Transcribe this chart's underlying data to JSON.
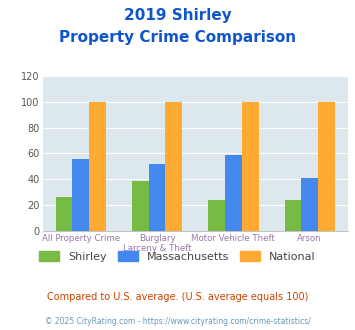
{
  "title_line1": "2019 Shirley",
  "title_line2": "Property Crime Comparison",
  "category_labels_line1": [
    "All Property Crime",
    "Burglary",
    "Motor Vehicle Theft",
    "Arson"
  ],
  "category_labels_line2": [
    "",
    "Larceny & Theft",
    "",
    ""
  ],
  "groups": [
    "Shirley",
    "Massachusetts",
    "National"
  ],
  "values": {
    "Shirley": [
      26,
      39,
      24,
      24
    ],
    "Massachusetts": [
      56,
      52,
      59,
      41
    ],
    "National": [
      100,
      100,
      100,
      100
    ]
  },
  "bar_colors": {
    "Shirley": "#77bb44",
    "Massachusetts": "#4488ee",
    "National": "#ffaa33"
  },
  "ylim": [
    0,
    120
  ],
  "yticks": [
    0,
    20,
    40,
    60,
    80,
    100,
    120
  ],
  "title_color": "#1155cc",
  "axis_label_color": "#9977aa",
  "legend_label_color": "#444444",
  "footnote1": "Compared to U.S. average. (U.S. average equals 100)",
  "footnote2": "© 2025 CityRating.com - https://www.cityrating.com/crime-statistics/",
  "footnote1_color": "#cc4400",
  "footnote2_color": "#6699bb",
  "background_color": "#dde8ee",
  "fig_background": "#ffffff",
  "bar_width": 0.22
}
